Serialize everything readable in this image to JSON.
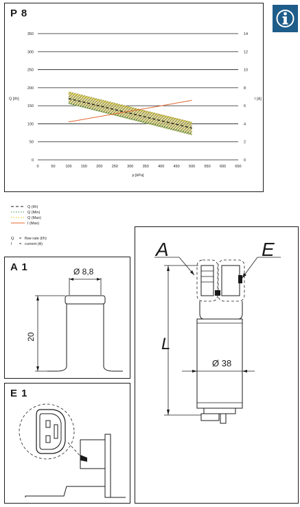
{
  "panels": {
    "chart_title": "P 8",
    "a1_title": "A 1",
    "e1_title": "E 1"
  },
  "chart_data": {
    "type": "line",
    "xlabel": "p [kPa]",
    "ylabel_left": "Q [l/h]",
    "ylabel_right": "I [A]",
    "xlim": [
      0,
      650
    ],
    "ylim_left": [
      0,
      350
    ],
    "ylim_right": [
      0,
      14
    ],
    "x_ticks": [
      "0",
      "50",
      "100",
      "150",
      "200",
      "250",
      "300",
      "350",
      "400",
      "450",
      "500",
      "550",
      "600",
      "650"
    ],
    "y_ticks_left": [
      "0",
      "50",
      "100",
      "150",
      "200",
      "250",
      "300",
      "350"
    ],
    "y_ticks_right": [
      "0",
      "2",
      "4",
      "6",
      "8",
      "10",
      "12",
      "14"
    ],
    "grid": true,
    "series": [
      {
        "name": "Q (l/h)",
        "axis": "left",
        "color": "#1a1a1a",
        "dash": "4,3",
        "x": [
          100,
          500
        ],
        "y": [
          170,
          88
        ]
      },
      {
        "name": "Q (Min)",
        "axis": "left",
        "color": "#2e8b3a",
        "dash": "1.5,2",
        "x": [
          100,
          500
        ],
        "y": [
          157,
          72
        ]
      },
      {
        "name": "Q (Max)",
        "axis": "left",
        "color": "#d8c400",
        "dash": "1.5,2",
        "x": [
          100,
          500
        ],
        "y": [
          185,
          103
        ]
      },
      {
        "name": "I (Max)",
        "axis": "right",
        "color": "#e0642a",
        "dash": "",
        "x": [
          100,
          500
        ],
        "y": [
          4.2,
          6.6
        ]
      }
    ],
    "band": {
      "x": [
        100,
        500
      ],
      "upper": [
        190,
        105
      ],
      "lower": [
        155,
        68
      ],
      "color": "#d8c400"
    }
  },
  "legend": {
    "items": [
      {
        "label": "Q (l/h)",
        "color": "#1a1a1a",
        "dash": "4,3"
      },
      {
        "label": "Q (Min)",
        "color": "#2e8b3a",
        "dash": "1.5,2"
      },
      {
        "label": "Q (Max)",
        "color": "#d8c400",
        "dash": "1.5,2"
      },
      {
        "label": "I (Max)",
        "color": "#e0642a",
        "dash": ""
      }
    ],
    "notes": [
      {
        "sym": "Q",
        "eq": "=",
        "text": "flow rate (l/h)"
      },
      {
        "sym": "I",
        "eq": "=",
        "text": "current (A)"
      }
    ]
  },
  "a1": {
    "diameter": "Ø 8,8",
    "height": "20"
  },
  "main_drawing": {
    "label_a": "A",
    "label_e": "E",
    "label_l": "L",
    "diameter": "Ø 38"
  },
  "colors": {
    "info_icon_bg": "#1e5c8a",
    "line": "#1a1a1a"
  },
  "icons": {
    "info": "info-icon"
  }
}
